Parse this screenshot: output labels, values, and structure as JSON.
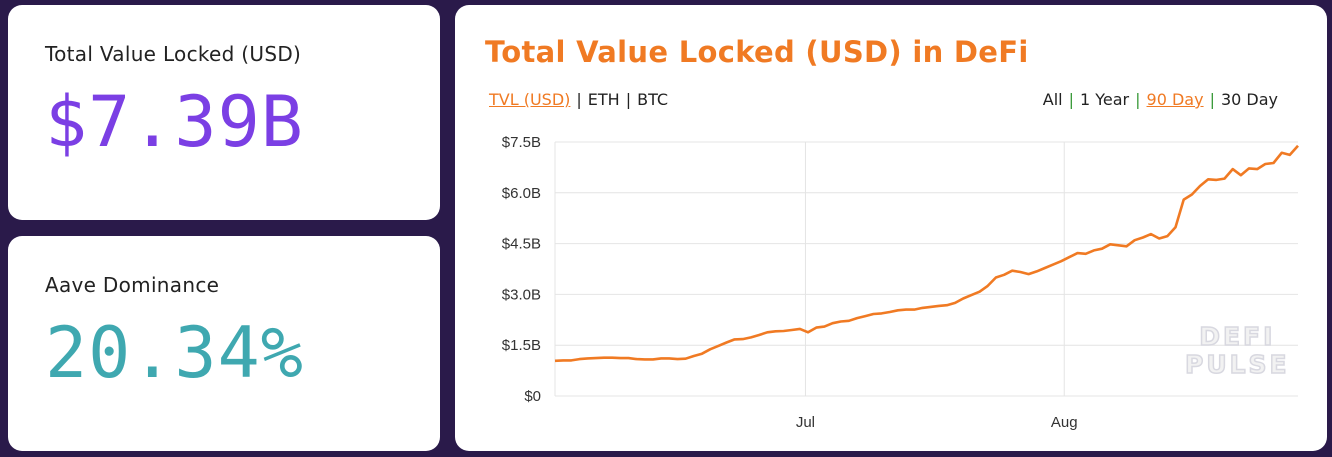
{
  "stats": {
    "tvl": {
      "label": "Total Value Locked (USD)",
      "value": "$7.39B"
    },
    "aave": {
      "label": "Aave Dominance",
      "value": "20.34%"
    }
  },
  "chart_header": {
    "title": "Total Value Locked (USD) in DeFi",
    "currency_options": [
      "TVL (USD)",
      "ETH",
      "BTC"
    ],
    "currency_active": "TVL (USD)",
    "range_options": [
      "All",
      "1 Year",
      "90 Day",
      "30 Day"
    ],
    "range_active": "90 Day",
    "watermark": [
      "DEFI",
      "PULSE"
    ]
  },
  "colors": {
    "line": "#f07a23",
    "tvl_value": "#7b3fe4",
    "aave_value": "#3fa8b0",
    "background": "#2a1a4a"
  },
  "chart_data": {
    "type": "line",
    "title": "Total Value Locked (USD) in DeFi",
    "xlabel": "",
    "ylabel": "",
    "y_ticks": [
      "$0",
      "$1.5B",
      "$3.0B",
      "$4.5B",
      "$6.0B",
      "$7.5B"
    ],
    "y_tick_values": [
      0,
      1.5,
      3.0,
      4.5,
      6.0,
      7.5
    ],
    "ylim": [
      0,
      7.5
    ],
    "x_ticks": [
      {
        "label": "Jul",
        "day": 30
      },
      {
        "label": "Aug",
        "day": 61
      }
    ],
    "xlim": [
      0,
      89
    ],
    "grid": true,
    "legend": "none",
    "series": [
      {
        "values": [
          1.04,
          1.05,
          1.05,
          1.09,
          1.11,
          1.12,
          1.13,
          1.13,
          1.12,
          1.12,
          1.09,
          1.08,
          1.08,
          1.11,
          1.11,
          1.09,
          1.1,
          1.18,
          1.25,
          1.38,
          1.48,
          1.58,
          1.67,
          1.68,
          1.73,
          1.8,
          1.88,
          1.91,
          1.92,
          1.95,
          1.98,
          1.88,
          2.02,
          2.05,
          2.15,
          2.2,
          2.22,
          2.3,
          2.36,
          2.42,
          2.44,
          2.48,
          2.53,
          2.55,
          2.55,
          2.6,
          2.63,
          2.66,
          2.68,
          2.75,
          2.88,
          2.98,
          3.08,
          3.25,
          3.5,
          3.58,
          3.7,
          3.66,
          3.6,
          3.68,
          3.78,
          3.88,
          3.98,
          4.1,
          4.22,
          4.2,
          4.3,
          4.35,
          4.48,
          4.45,
          4.42,
          4.6,
          4.68,
          4.78,
          4.65,
          4.72,
          4.98,
          5.8,
          5.95,
          6.2,
          6.4,
          6.38,
          6.42,
          6.7,
          6.52,
          6.72,
          6.7,
          6.85,
          6.88,
          7.18,
          7.12,
          7.39
        ]
      }
    ]
  }
}
